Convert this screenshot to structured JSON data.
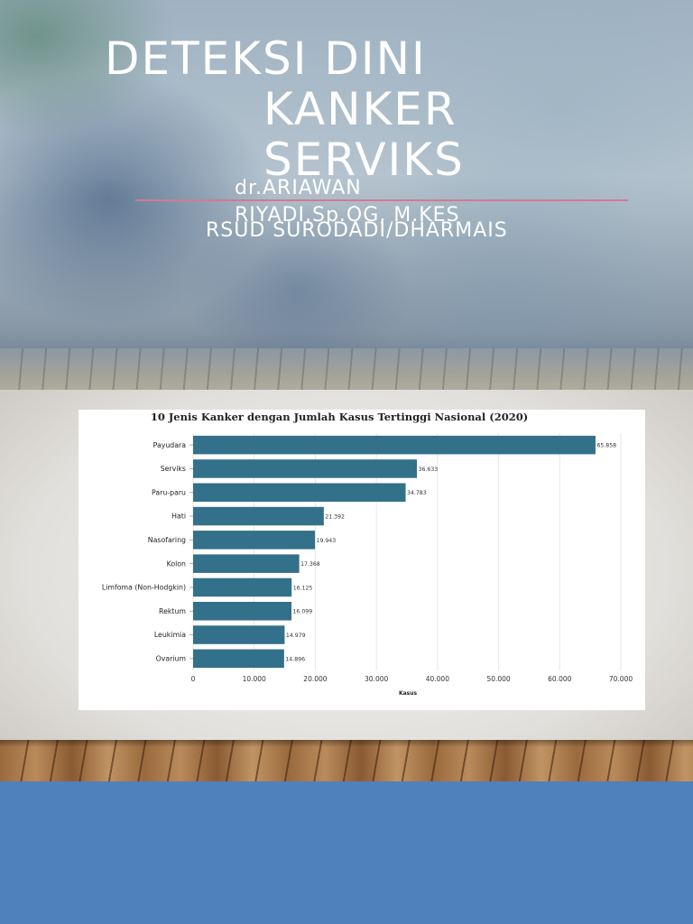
{
  "title": {
    "line1": "DETEKSI DINI",
    "line2": "KANKER",
    "line3": "SERVIKS"
  },
  "subtitle": {
    "line1": "dr.ARIAWAN",
    "line2": "RIYADI,Sp.OG, M.KES",
    "line3": "RSUD SURODADI/DHARMAIS"
  },
  "colors": {
    "bar": "#33708a",
    "bottom_band": "#4f81bd",
    "title_rule": "#d47a92"
  },
  "chart_data": {
    "type": "bar",
    "orientation": "horizontal",
    "title": "10 Jenis Kanker dengan Jumlah Kasus Tertinggi Nasional (2020)",
    "xlabel": "Kasus",
    "ylabel": "",
    "categories": [
      "Payudara",
      "Serviks",
      "Paru-paru",
      "Hati",
      "Nasofaring",
      "Kolon",
      "Limfoma (Non-Hodgkin)",
      "Rektum",
      "Leukimia",
      "Ovarium"
    ],
    "values": [
      65858,
      36633,
      34783,
      21392,
      19943,
      17368,
      16125,
      16099,
      14979,
      14896
    ],
    "value_labels": [
      "65.858",
      "36.633",
      "34.783",
      "21.392",
      "19.943",
      "17.368",
      "16.125",
      "16.099",
      "14.979",
      "14.896"
    ],
    "xlim": [
      0,
      70000
    ],
    "x_ticks": [
      0,
      10000,
      20000,
      30000,
      40000,
      50000,
      60000,
      70000
    ],
    "x_tick_labels": [
      "0",
      "10.000",
      "20.000",
      "30.000",
      "40.000",
      "50.000",
      "60.000",
      "70.000"
    ],
    "grid": true,
    "legend": "none"
  }
}
